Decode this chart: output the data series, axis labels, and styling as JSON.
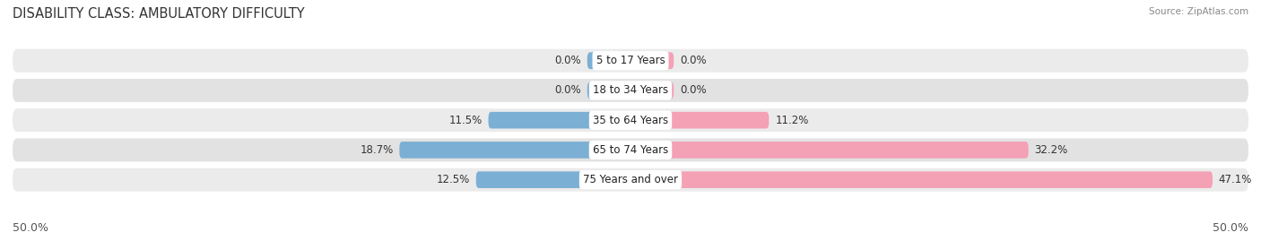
{
  "title": "DISABILITY CLASS: AMBULATORY DIFFICULTY",
  "source": "Source: ZipAtlas.com",
  "categories": [
    "5 to 17 Years",
    "18 to 34 Years",
    "35 to 64 Years",
    "65 to 74 Years",
    "75 Years and over"
  ],
  "male_values": [
    0.0,
    0.0,
    11.5,
    18.7,
    12.5
  ],
  "female_values": [
    0.0,
    0.0,
    11.2,
    32.2,
    47.1
  ],
  "male_color": "#7bafd4",
  "female_color": "#f4a0b5",
  "row_bg_colors": [
    "#ebebeb",
    "#e2e2e2",
    "#ebebeb",
    "#e2e2e2",
    "#ebebeb"
  ],
  "max_val": 50.0,
  "title_fontsize": 10.5,
  "label_fontsize": 8.5,
  "tick_fontsize": 9,
  "source_fontsize": 7.5,
  "background_color": "#ffffff",
  "zero_bar_width": 3.5
}
